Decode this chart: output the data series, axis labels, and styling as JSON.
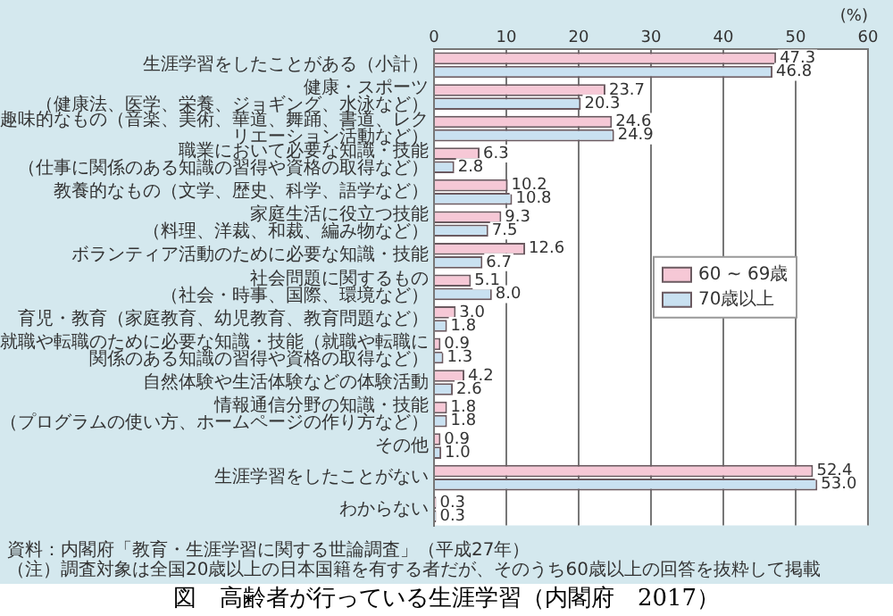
{
  "chart_data": {
    "type": "bar",
    "orientation": "horizontal",
    "title": "図　高齢者が行っている生涯学習（内閣府　2017）",
    "xlabel": "(%)",
    "categories": [
      "生涯学習をしたことがある（小計）",
      "健康・スポーツ（健康法、医学、栄養、ジョギング、水泳など）",
      "趣味的なもの（音楽、美術、華道、舞踊、書道、レクリエーション活動など）",
      "職業において必要な知識・技能（仕事に関係のある知識の習得や資格の取得など）",
      "教養的なもの（文学、歴史、科学、語学など）",
      "家庭生活に役立つ技能（料理、洋裁、和裁、編み物など）",
      "ボランティア活動のために必要な知識・技能",
      "社会問題に関するもの（社会・時事、国際、環境など）",
      "育児・教育（家庭教育、幼児教育、教育問題など）",
      "就職や転職のために必要な知識・技能（就職や転職に関係のある知識の習得や資格の取得など）",
      "自然体験や生活体験などの体験活動",
      "情報通信分野の知識・技能（プログラムの使い方、ホームページの作り方など）",
      "その他",
      "生涯学習をしたことがない",
      "わからない"
    ],
    "series": [
      {
        "name": "60 ~ 69歳",
        "color": "#f6c8d6",
        "values": [
          47.3,
          23.7,
          24.6,
          6.3,
          10.2,
          9.3,
          12.6,
          5.1,
          3.0,
          0.9,
          4.2,
          1.8,
          0.9,
          52.4,
          0.3
        ],
        "value_labels": [
          "47.3",
          "23.7",
          "24.6",
          "6.3",
          "10.2",
          "9.3",
          "12.6",
          "5.1",
          "3.0",
          "0.9",
          "4.2",
          "1.8",
          "0.9",
          "52.4",
          "0.3"
        ]
      },
      {
        "name": "70歳以上",
        "color": "#c9e1f1",
        "values": [
          46.8,
          20.3,
          24.9,
          2.8,
          10.8,
          7.5,
          6.7,
          8.0,
          1.8,
          1.3,
          2.6,
          1.8,
          1.0,
          53.0,
          0.3
        ],
        "value_labels": [
          "46.8",
          "20.3",
          "24.9",
          "2.8",
          "10.8",
          "7.5",
          "6.7",
          "8.0",
          "1.8",
          "1.3",
          "2.6",
          "1.8",
          "1.0",
          "53.0",
          "0.3"
        ]
      }
    ],
    "xlim": [
      0,
      60
    ],
    "xticks": [
      0,
      10,
      20,
      30,
      40,
      50,
      60
    ],
    "grid": "x",
    "legend": "right",
    "annotations": [
      "資料：内閣府「教育・生涯学習に関する世論調査」（平成27年）",
      "（注）調査対象は全国20歳以上の日本国籍を有する者だが、そのうち60歳以上の回答を抜粋して掲載"
    ]
  }
}
